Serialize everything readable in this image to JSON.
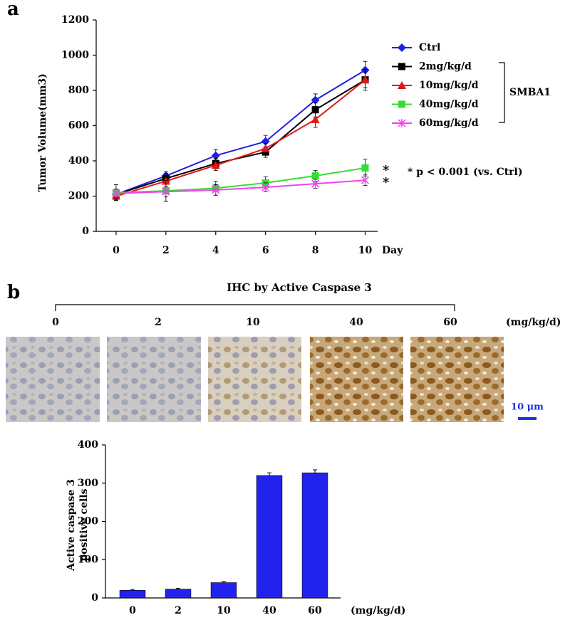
{
  "panel_labels": [
    "a",
    "b"
  ],
  "chart_data": [
    {
      "type": "line",
      "ylabel": "Tumor Volume(mm3)",
      "xlabel": "Day",
      "x": [
        0,
        2,
        4,
        6,
        8,
        10
      ],
      "xlim": [
        -0.8,
        10.5
      ],
      "xticks": [
        0,
        2,
        4,
        6,
        8,
        10
      ],
      "ylim": [
        0,
        1200
      ],
      "yticks": [
        0,
        200,
        400,
        600,
        800,
        1000,
        1200
      ],
      "series": [
        {
          "name": "Ctrl",
          "color": "#2020e0",
          "marker": "diamond",
          "values": [
            210,
            315,
            430,
            510,
            745,
            915
          ],
          "errors": [
            30,
            25,
            35,
            35,
            35,
            50
          ]
        },
        {
          "name": "2mg/kg/d",
          "color": "#000000",
          "marker": "square",
          "values": [
            210,
            300,
            385,
            450,
            690,
            860
          ],
          "errors": [
            25,
            30,
            30,
            30,
            40,
            60
          ]
        },
        {
          "name": "10mg/kg/d",
          "color": "#e01818",
          "marker": "triangle",
          "values": [
            200,
            285,
            375,
            470,
            635,
            860
          ],
          "errors": [
            25,
            30,
            30,
            30,
            45,
            45
          ]
        },
        {
          "name": "40mg/kg/d",
          "color": "#33dd33",
          "marker": "square",
          "values": [
            220,
            230,
            245,
            275,
            315,
            360
          ],
          "errors": [
            45,
            60,
            40,
            35,
            30,
            50
          ]
        },
        {
          "name": "60mg/kg/d",
          "color": "#ee44ee",
          "marker": "star",
          "values": [
            215,
            225,
            235,
            250,
            270,
            290
          ],
          "errors": [
            25,
            30,
            30,
            25,
            25,
            30
          ]
        }
      ],
      "bracket_label": "SMBA1",
      "significance": [
        "*",
        "*"
      ],
      "note": "* p < 0.001 (vs. Ctrl)"
    },
    {
      "type": "bar",
      "ylabel": [
        "Active caspase 3",
        "positive cells"
      ],
      "xlabel": "(mg/kg/d)",
      "categories": [
        "0",
        "2",
        "10",
        "40",
        "60"
      ],
      "values": [
        20,
        23,
        40,
        320,
        327
      ],
      "errors": [
        2,
        2,
        3,
        7,
        8
      ],
      "color": "#2222ee",
      "ylim": [
        0,
        400
      ],
      "yticks": [
        0,
        100,
        200,
        300,
        400
      ]
    }
  ],
  "ihc": {
    "title": "IHC by Active Caspase 3",
    "doses": [
      "0",
      "2",
      "10",
      "40",
      "60"
    ],
    "unit": "(mg/kg/d)",
    "scale": "10 μm"
  }
}
